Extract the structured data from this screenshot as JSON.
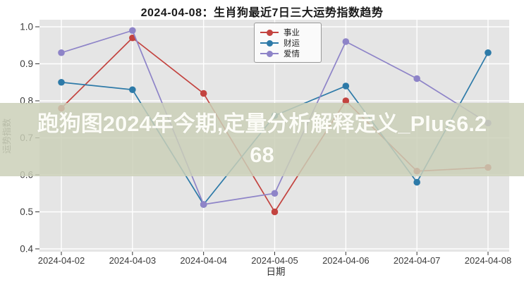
{
  "title": "2024-04-08：生肖狗最近7日三大运势指数趋势",
  "watermark": {
    "full_text": "跑狗图2024年今期,定量分析解释定义_Plus6.268",
    "line1": "跑狗图2024年今期,定量分析解释定义_Plus6.2",
    "line2": "68"
  },
  "chart_data": {
    "type": "line",
    "title": "2024-04-08：生肖狗最近7日三大运势指数趋势",
    "categories": [
      "2024-04-02",
      "2024-04-03",
      "2024-04-04",
      "2024-04-05",
      "2024-04-06",
      "2024-04-07",
      "2024-04-08"
    ],
    "series": [
      {
        "name": "事业",
        "color": "#c3433f",
        "values": [
          0.78,
          0.97,
          0.82,
          0.5,
          0.8,
          0.61,
          0.62
        ]
      },
      {
        "name": "财运",
        "color": "#2d7aa8",
        "values": [
          0.85,
          0.83,
          0.52,
          0.76,
          0.84,
          0.58,
          0.93
        ]
      },
      {
        "name": "爱情",
        "color": "#8e84c8",
        "values": [
          0.93,
          0.99,
          0.52,
          0.55,
          0.96,
          0.86,
          0.74
        ]
      }
    ],
    "xlabel": "日期",
    "ylabel": "运势指数",
    "ylim": [
      0.4,
      1.0
    ],
    "yticks": [
      0.4,
      0.5,
      0.6,
      0.7,
      0.8,
      0.9,
      1.0
    ],
    "grid": true,
    "legend_position": "upper center",
    "plot_background": "#e5e5e5",
    "grid_color": "#ffffff",
    "tick_label_color": "#3c3c3c",
    "axis_label_color": "#333333"
  }
}
